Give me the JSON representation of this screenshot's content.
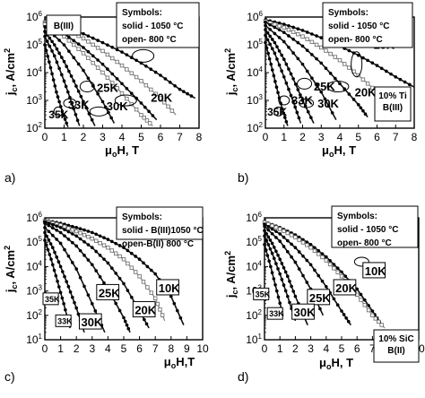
{
  "chart_data": [
    {
      "panel": "a)",
      "type": "line",
      "ylabel": "jc, A/cm2",
      "xlabel": "μoH, T",
      "xlim": [
        0,
        8
      ],
      "ylim_log10": [
        2,
        6
      ],
      "xticks": [
        "0",
        "1",
        "2",
        "3",
        "4",
        "5",
        "6",
        "7",
        "8"
      ],
      "yticks": [
        "10^2",
        "10^3",
        "10^4",
        "10^5",
        "10^6"
      ],
      "legend_box": [
        "Symbols:",
        "solid - 1050 °C",
        "open- 800 °C"
      ],
      "sample_label": "B(III)",
      "annotations": [
        "10K",
        "20K",
        "25K",
        "30K",
        "33K",
        "35K"
      ],
      "series": [
        {
          "name": "10K",
          "style": "solid",
          "x": [
            0,
            1,
            2,
            3,
            4,
            5,
            6,
            7,
            7.8
          ],
          "y": [
            700000,
            450000,
            250000,
            120000,
            55000,
            22000,
            8000,
            2500,
            1200
          ]
        },
        {
          "name": "10K",
          "style": "open",
          "x": [
            0,
            1,
            2,
            3,
            4,
            5,
            6,
            6.8
          ],
          "y": [
            650000,
            380000,
            170000,
            60000,
            18000,
            5000,
            1200,
            300
          ]
        },
        {
          "name": "20K",
          "style": "solid",
          "x": [
            0,
            1,
            2,
            3,
            4,
            5,
            5.8
          ],
          "y": [
            600000,
            250000,
            80000,
            20000,
            4000,
            800,
            200
          ]
        },
        {
          "name": "20K",
          "style": "open",
          "x": [
            0,
            1,
            2,
            3,
            4,
            5,
            5.6
          ],
          "y": [
            550000,
            200000,
            50000,
            10000,
            1800,
            300,
            120
          ]
        },
        {
          "name": "25K",
          "style": "solid",
          "x": [
            0,
            1,
            2,
            3,
            3.6
          ],
          "y": [
            450000,
            100000,
            12000,
            900,
            150
          ]
        },
        {
          "name": "30K",
          "style": "solid",
          "x": [
            0,
            0.5,
            1,
            1.5,
            2,
            2.6
          ],
          "y": [
            300000,
            100000,
            25000,
            5000,
            900,
            120
          ]
        },
        {
          "name": "33K",
          "style": "solid",
          "x": [
            0,
            0.5,
            1,
            1.4,
            1.8
          ],
          "y": [
            200000,
            40000,
            5000,
            800,
            120
          ]
        },
        {
          "name": "35K",
          "style": "solid",
          "x": [
            0,
            0.3,
            0.6,
            0.9,
            1.2
          ],
          "y": [
            100000,
            15000,
            2000,
            400,
            110
          ]
        }
      ]
    },
    {
      "panel": "b)",
      "type": "line",
      "ylabel": "jc, A/cm2",
      "xlabel": "μoH, T",
      "xlim": [
        0,
        8
      ],
      "ylim_log10": [
        2,
        6
      ],
      "xticks": [
        "0",
        "1",
        "2",
        "3",
        "4",
        "5",
        "6",
        "7",
        "8"
      ],
      "yticks": [
        "10^2",
        "10^3",
        "10^4",
        "10^5",
        "10^6"
      ],
      "legend_box": [
        "Symbols:",
        "solid - 1050 °C",
        "open- 800 °C"
      ],
      "sample_label": "10% Ti B(III)",
      "annotations": [
        "10K",
        "20K",
        "25K",
        "30K",
        "33K",
        "35K"
      ],
      "series": [
        {
          "name": "10K",
          "style": "solid",
          "x": [
            0,
            1,
            2,
            3,
            4,
            5,
            6,
            7,
            8
          ],
          "y": [
            800000,
            550000,
            330000,
            180000,
            90000,
            42000,
            18000,
            7000,
            3000
          ]
        },
        {
          "name": "10K",
          "style": "open",
          "x": [
            0,
            1,
            2,
            3,
            4,
            5,
            6,
            7
          ],
          "y": [
            700000,
            420000,
            200000,
            80000,
            28000,
            8000,
            2000,
            500
          ]
        },
        {
          "name": "20K",
          "style": "solid",
          "x": [
            0,
            1,
            2,
            3,
            4,
            5,
            5.5
          ],
          "y": [
            650000,
            280000,
            90000,
            22000,
            4000,
            700,
            250
          ]
        },
        {
          "name": "25K",
          "style": "solid",
          "x": [
            0,
            1,
            2,
            3,
            3.8
          ],
          "y": [
            500000,
            130000,
            20000,
            2000,
            200
          ]
        },
        {
          "name": "30K",
          "style": "solid",
          "x": [
            0,
            0.5,
            1,
            1.5,
            2,
            2.6
          ],
          "y": [
            350000,
            120000,
            30000,
            6000,
            1000,
            150
          ]
        },
        {
          "name": "33K",
          "style": "solid",
          "x": [
            0,
            0.5,
            1,
            1.5,
            1.9
          ],
          "y": [
            220000,
            50000,
            7000,
            900,
            150
          ]
        },
        {
          "name": "35K",
          "style": "solid",
          "x": [
            0,
            0.3,
            0.6,
            0.9,
            1.2
          ],
          "y": [
            120000,
            20000,
            3000,
            500,
            120
          ]
        }
      ]
    },
    {
      "panel": "c)",
      "type": "line",
      "ylabel": "jc, A/cm2",
      "xlabel": "μoH,T",
      "xlim": [
        0,
        10
      ],
      "ylim_log10": [
        1,
        6
      ],
      "xticks": [
        "0",
        "1",
        "2",
        "3",
        "4",
        "5",
        "6",
        "7",
        "8",
        "9",
        "10"
      ],
      "yticks": [
        "10^1",
        "10^2",
        "10^3",
        "10^4",
        "10^5",
        "10^6"
      ],
      "legend_box": [
        "Symbols:",
        "solid - B(III)1050 °C",
        "open-B(II) 800 °C"
      ],
      "annotations": [
        "10K",
        "20K",
        "25K",
        "30K",
        "33K",
        "35K"
      ],
      "series": [
        {
          "name": "10K",
          "style": "solid",
          "x": [
            0,
            1,
            2,
            3,
            4,
            5,
            6,
            7,
            8,
            8.8
          ],
          "y": [
            800000,
            600000,
            400000,
            250000,
            130000,
            60000,
            20000,
            5000,
            600,
            40
          ]
        },
        {
          "name": "10K",
          "style": "open",
          "x": [
            0,
            1,
            2,
            3,
            4,
            5,
            6,
            7,
            7.6
          ],
          "y": [
            750000,
            500000,
            280000,
            140000,
            60000,
            20000,
            4000,
            500,
            60
          ]
        },
        {
          "name": "20K",
          "style": "solid",
          "x": [
            0,
            1,
            2,
            3,
            4,
            5,
            6,
            6.6
          ],
          "y": [
            700000,
            400000,
            180000,
            60000,
            14000,
            2000,
            150,
            30
          ]
        },
        {
          "name": "25K",
          "style": "solid",
          "x": [
            0,
            1,
            2,
            3,
            4,
            5,
            5.4
          ],
          "y": [
            600000,
            250000,
            70000,
            12000,
            1200,
            80,
            20
          ]
        },
        {
          "name": "30K",
          "style": "solid",
          "x": [
            0,
            1,
            2,
            3,
            3.8
          ],
          "y": [
            400000,
            90000,
            8000,
            300,
            20
          ]
        },
        {
          "name": "33K",
          "style": "solid",
          "x": [
            0,
            0.5,
            1,
            1.5,
            2,
            2.5
          ],
          "y": [
            250000,
            60000,
            10000,
            1500,
            200,
            20
          ]
        },
        {
          "name": "35K",
          "style": "solid",
          "x": [
            0,
            0.4,
            0.8,
            1.2,
            1.6
          ],
          "y": [
            120000,
            20000,
            2500,
            300,
            30
          ]
        }
      ]
    },
    {
      "panel": "d)",
      "type": "line",
      "ylabel": "jc, A/cm2",
      "xlabel": "μoH, T",
      "xlim": [
        0,
        10
      ],
      "ylim_log10": [
        1,
        6
      ],
      "xticks": [
        "0",
        "1",
        "2",
        "3",
        "4",
        "5",
        "6",
        "7",
        "8",
        "9",
        "10"
      ],
      "yticks": [
        "10^1",
        "10^2",
        "10^3",
        "10^4",
        "10^5",
        "10^6"
      ],
      "legend_box": [
        "Symbols:",
        "solid - 1050 °C",
        "open- 800 °C"
      ],
      "sample_label": "10% SiC B(II)",
      "annotations": [
        "10K",
        "20K",
        "25K",
        "30K",
        "33K",
        "35K"
      ],
      "series": [
        {
          "name": "10K",
          "style": "solid",
          "x": [
            0,
            1,
            2,
            3,
            4,
            5,
            6,
            7,
            7.6
          ],
          "y": [
            700000,
            400000,
            200000,
            80000,
            25000,
            6000,
            1200,
            150,
            40
          ]
        },
        {
          "name": "10K",
          "style": "open",
          "x": [
            0,
            1,
            2,
            3,
            4,
            5,
            6,
            7,
            7.8
          ],
          "y": [
            650000,
            350000,
            160000,
            60000,
            18000,
            4000,
            700,
            100,
            30
          ]
        },
        {
          "name": "20K",
          "style": "solid",
          "x": [
            0,
            1,
            2,
            3,
            4,
            5,
            5.6
          ],
          "y": [
            550000,
            220000,
            60000,
            12000,
            1500,
            150,
            40
          ]
        },
        {
          "name": "25K",
          "style": "solid",
          "x": [
            0,
            1,
            2,
            3,
            3.8
          ],
          "y": [
            450000,
            110000,
            15000,
            1200,
            100
          ]
        },
        {
          "name": "30K",
          "style": "solid",
          "x": [
            0,
            0.5,
            1,
            1.5,
            2,
            2.8
          ],
          "y": [
            300000,
            90000,
            20000,
            4000,
            600,
            40
          ]
        },
        {
          "name": "33K",
          "style": "solid",
          "x": [
            0,
            0.5,
            1,
            1.5,
            2
          ],
          "y": [
            180000,
            35000,
            5000,
            600,
            60
          ]
        },
        {
          "name": "35K",
          "style": "solid",
          "x": [
            0,
            0.4,
            0.8,
            1.2
          ],
          "y": [
            80000,
            10000,
            1000,
            100
          ]
        }
      ]
    }
  ]
}
